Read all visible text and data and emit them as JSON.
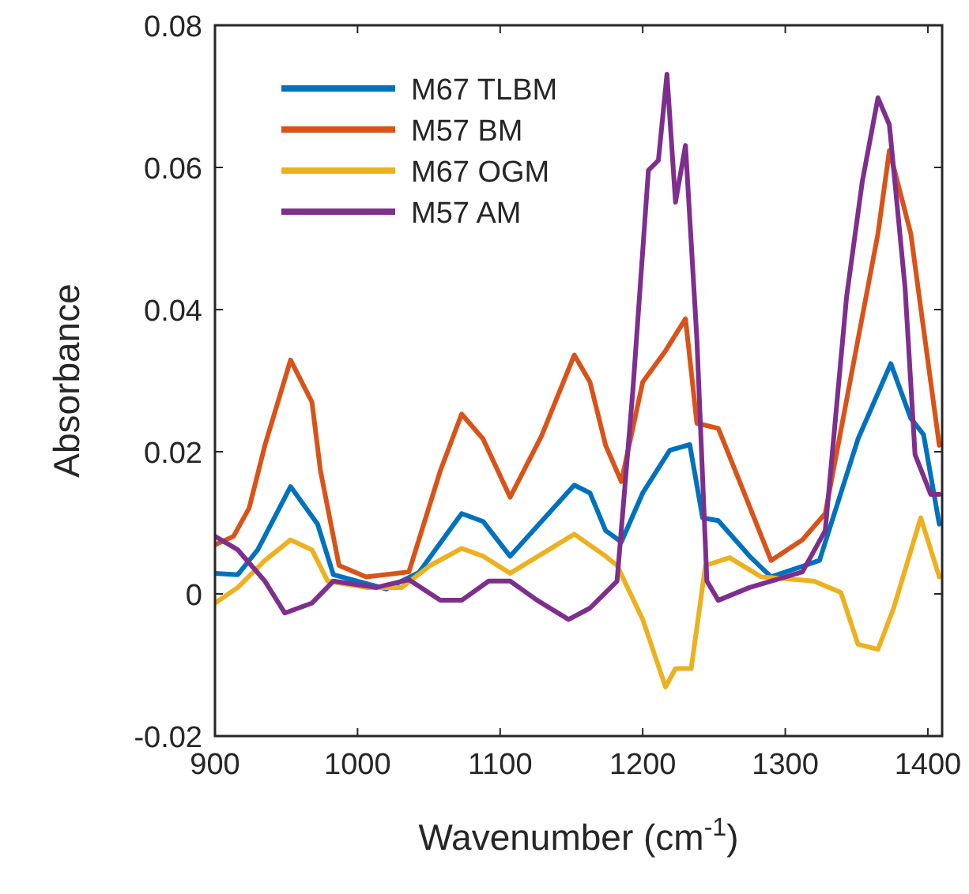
{
  "chart_data": {
    "type": "line",
    "xlabel": "Wavenumber (cm$^{-1}$)",
    "ylabel": "Absorbance",
    "xlim": [
      900,
      1410
    ],
    "xticks": [
      900,
      1000,
      1100,
      1200,
      1300,
      1400
    ],
    "ylim": [
      -0.02,
      0.08
    ],
    "yticks": [
      -0.02,
      0,
      0.02,
      0.04,
      0.06,
      0.08
    ],
    "grid": false,
    "legend": "top left",
    "line_style": "solid",
    "marker": "none",
    "series": [
      {
        "name": "M67 TLBM",
        "color": "#0072bd",
        "x": [
          900,
          916,
          930,
          953,
          972,
          983,
          1020,
          1043,
          1073,
          1088,
          1107,
          1152,
          1163,
          1174,
          1185,
          1200,
          1219,
          1233,
          1242,
          1253,
          1275,
          1290,
          1324,
          1351,
          1374,
          1388,
          1397,
          1408
        ],
        "values": [
          0.0029,
          0.0027,
          0.0062,
          0.0151,
          0.0098,
          0.0027,
          0.0007,
          0.003,
          0.0113,
          0.0102,
          0.0053,
          0.0153,
          0.0142,
          0.0089,
          0.0073,
          0.0142,
          0.0202,
          0.021,
          0.0107,
          0.0103,
          0.0053,
          0.0024,
          0.0047,
          0.0218,
          0.0324,
          0.0247,
          0.0224,
          0.0098
        ]
      },
      {
        "name": "M57 BM",
        "color": "#d95319",
        "x": [
          900,
          913,
          924,
          935,
          953,
          968,
          974,
          987,
          1006,
          1036,
          1058,
          1073,
          1088,
          1107,
          1129,
          1152,
          1163,
          1174,
          1185,
          1200,
          1216,
          1230,
          1238,
          1253,
          1268,
          1290,
          1312,
          1328,
          1351,
          1365,
          1373,
          1388,
          1402,
          1408
        ],
        "values": [
          0.0069,
          0.0081,
          0.0121,
          0.0209,
          0.0329,
          0.027,
          0.0173,
          0.004,
          0.0024,
          0.0031,
          0.0173,
          0.0253,
          0.0218,
          0.0136,
          0.0222,
          0.0336,
          0.0298,
          0.0209,
          0.0158,
          0.0298,
          0.0342,
          0.0387,
          0.024,
          0.0233,
          0.0158,
          0.0047,
          0.0076,
          0.0113,
          0.0358,
          0.0507,
          0.0624,
          0.0507,
          0.0298,
          0.0209
        ]
      },
      {
        "name": "M67 OGM",
        "color": "#edb120",
        "x": [
          900,
          916,
          935,
          953,
          968,
          979,
          1006,
          1031,
          1051,
          1073,
          1088,
          1107,
          1152,
          1174,
          1182,
          1200,
          1216,
          1223,
          1234,
          1244,
          1261,
          1283,
          1320,
          1339,
          1351,
          1365,
          1376,
          1395,
          1408
        ],
        "values": [
          -0.0013,
          0.0009,
          0.0047,
          0.0076,
          0.0062,
          0.0018,
          0.0009,
          0.0009,
          0.004,
          0.0064,
          0.0053,
          0.0029,
          0.0084,
          0.0053,
          0.004,
          -0.0036,
          -0.0131,
          -0.0105,
          -0.0105,
          0.004,
          0.0051,
          0.0024,
          0.0018,
          0.0002,
          -0.0071,
          -0.0078,
          -0.002,
          0.0107,
          0.0024
        ]
      },
      {
        "name": "M57 AM",
        "color": "#7e2f8e",
        "x": [
          900,
          916,
          935,
          949,
          968,
          983,
          1013,
          1036,
          1058,
          1073,
          1092,
          1107,
          1126,
          1148,
          1163,
          1182,
          1193,
          1204,
          1211,
          1217,
          1223,
          1230,
          1238,
          1245,
          1253,
          1275,
          1312,
          1328,
          1343,
          1354,
          1365,
          1373,
          1384,
          1391,
          1402,
          1408
        ],
        "values": [
          0.0081,
          0.0062,
          0.0018,
          -0.0027,
          -0.0013,
          0.0018,
          0.0009,
          0.002,
          -0.0009,
          -0.0009,
          0.0018,
          0.0018,
          -0.0009,
          -0.0036,
          -0.002,
          0.0018,
          0.0284,
          0.0596,
          0.061,
          0.0731,
          0.0551,
          0.0631,
          0.0358,
          0.0018,
          -0.0009,
          0.0009,
          0.0031,
          0.0089,
          0.0418,
          0.058,
          0.0698,
          0.066,
          0.0431,
          0.0196,
          0.014,
          0.014
        ]
      }
    ]
  }
}
